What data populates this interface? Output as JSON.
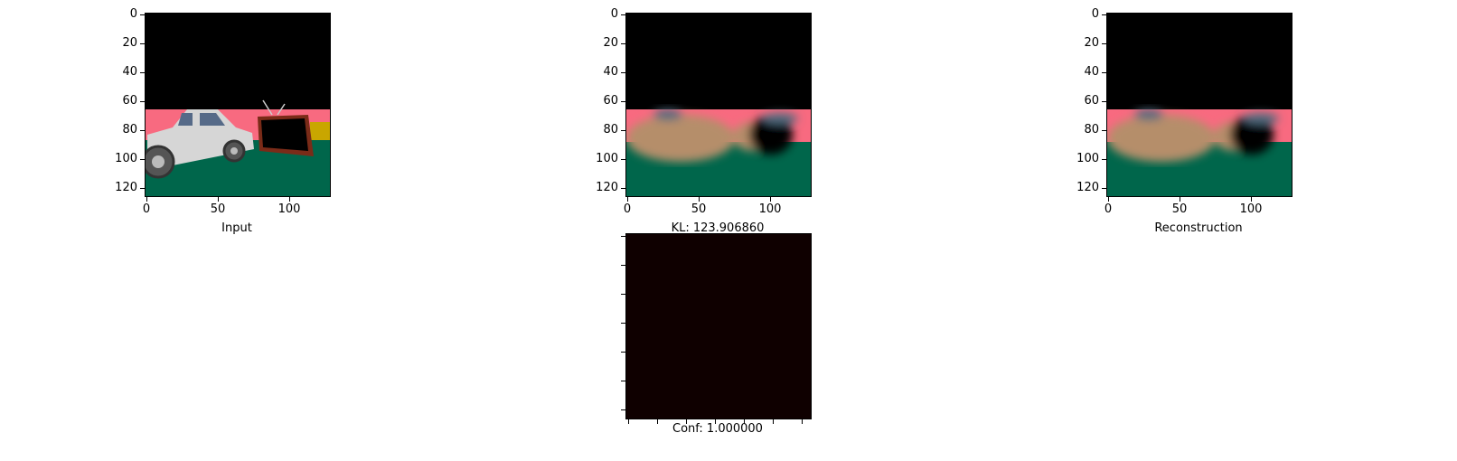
{
  "panels": [
    {
      "caption": "Input",
      "y_ticks": [
        "0",
        "20",
        "40",
        "60",
        "80",
        "100",
        "120"
      ],
      "x_ticks": [
        "0",
        "50",
        "100"
      ]
    },
    {
      "caption": "KL: 123.906860",
      "y_ticks": [
        "0",
        "20",
        "40",
        "60",
        "80",
        "100",
        "120"
      ],
      "x_ticks": [
        "0",
        "50",
        "100"
      ]
    },
    {
      "caption": "Reconstruction",
      "y_ticks": [
        "0",
        "20",
        "40",
        "60",
        "80",
        "100",
        "120"
      ],
      "x_ticks": [
        "0",
        "50",
        "100"
      ]
    },
    {
      "caption": "Conf: 1.000000",
      "fill_color": "#0f0000"
    }
  ],
  "colors": {
    "sky": "#000000",
    "wall": "#f86a80",
    "floor": "#00664b",
    "car_body": "#d9d9d9",
    "tv_frame": "#7a2b18",
    "blur_object": "#b58e6a"
  }
}
